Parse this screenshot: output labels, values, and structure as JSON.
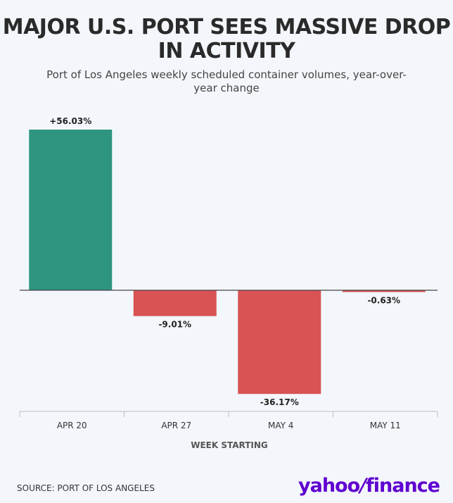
{
  "chart_data": {
    "type": "bar",
    "title": "MAJOR U.S. PORT SEES MASSIVE DROP IN ACTIVITY",
    "subtitle": "Port of Los Angeles weekly scheduled container volumes, year-over-year change",
    "categories": [
      "APR 20",
      "APR 27",
      "MAY 4",
      "MAY 11"
    ],
    "values": [
      56.03,
      -9.01,
      -36.17,
      -0.63
    ],
    "value_labels": [
      "+56.03%",
      "-9.01%",
      "-36.17%",
      "-0.63%"
    ],
    "xlabel": "WEEK STARTING",
    "ylabel": "",
    "ylim": [
      -42,
      58
    ],
    "grid": false,
    "colors": {
      "positive": "#2e9580",
      "negative": "#d95354",
      "baseline": "#444444",
      "axis": "#bdbdbd"
    }
  },
  "footer": {
    "source": "SOURCE: PORT OF LOS ANGELES",
    "logo_main": "yahoo",
    "logo_mark": "/",
    "logo_suffix": "finance"
  }
}
